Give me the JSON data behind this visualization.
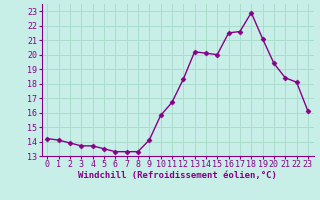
{
  "x": [
    0,
    1,
    2,
    3,
    4,
    5,
    6,
    7,
    8,
    9,
    10,
    11,
    12,
    13,
    14,
    15,
    16,
    17,
    18,
    19,
    20,
    21,
    22,
    23
  ],
  "y": [
    14.2,
    14.1,
    13.9,
    13.7,
    13.7,
    13.5,
    13.3,
    13.3,
    13.3,
    14.1,
    15.8,
    16.7,
    18.3,
    20.2,
    20.1,
    20.0,
    21.5,
    21.6,
    22.9,
    21.1,
    19.4,
    18.4,
    18.1,
    16.1
  ],
  "line_color": "#880088",
  "marker": "D",
  "marker_size": 2.5,
  "line_width": 1.0,
  "xlabel": "Windchill (Refroidissement éolien,°C)",
  "ylabel": "",
  "xlim": [
    -0.5,
    23.5
  ],
  "ylim": [
    13.0,
    23.5
  ],
  "yticks": [
    13,
    14,
    15,
    16,
    17,
    18,
    19,
    20,
    21,
    22,
    23
  ],
  "xticks": [
    0,
    1,
    2,
    3,
    4,
    5,
    6,
    7,
    8,
    9,
    10,
    11,
    12,
    13,
    14,
    15,
    16,
    17,
    18,
    19,
    20,
    21,
    22,
    23
  ],
  "grid_color": "#aaddcc",
  "bg_color": "#c8eee8",
  "tick_label_color": "#880088",
  "xlabel_color": "#880088",
  "xlabel_fontsize": 6.5,
  "tick_fontsize": 6.0,
  "spine_color": "#880088"
}
